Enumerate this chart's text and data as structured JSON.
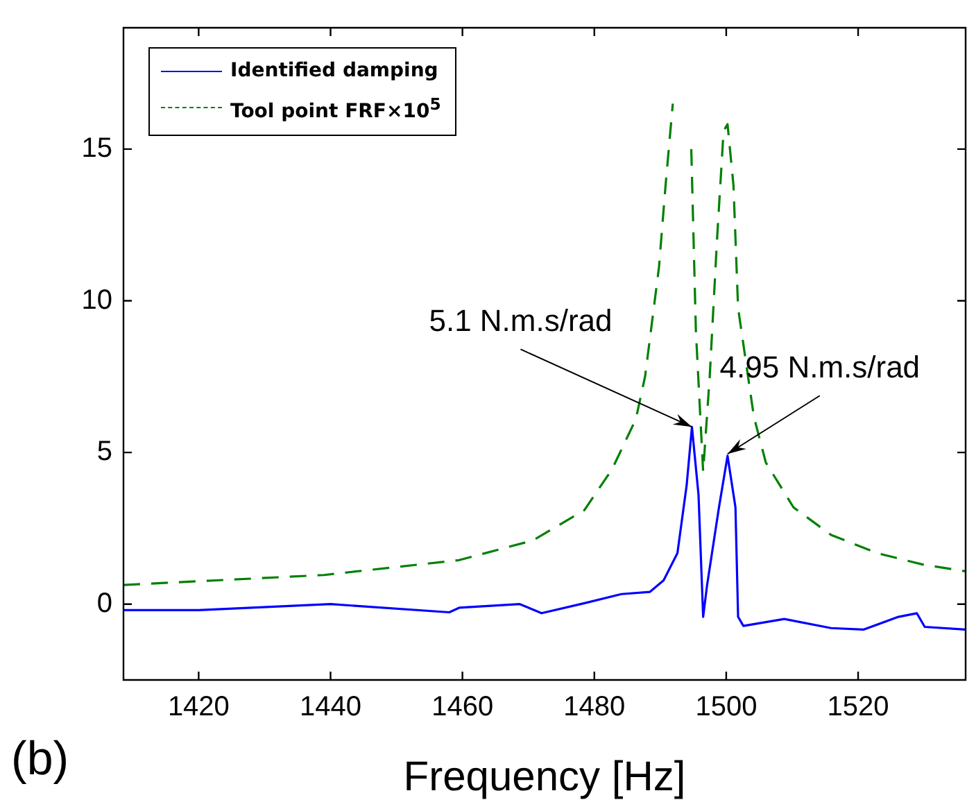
{
  "chart_data": {
    "type": "line",
    "xlabel": "Frequency [Hz]",
    "xlim": [
      1408.6,
      1536.3
    ],
    "ylim": [
      -2.5,
      19.0
    ],
    "xticks": [
      1420,
      1440,
      1460,
      1480,
      1500,
      1520
    ],
    "yticks": [
      0,
      5,
      10,
      15
    ],
    "grid": false,
    "legend": "top left",
    "marker": "none",
    "series": [
      {
        "name": "Identified damping",
        "color": "#0000ff",
        "line_style": "solid",
        "x": [
          1408.6,
          1420,
          1440,
          1458,
          1459.5,
          1468.7,
          1472,
          1478.5,
          1484.1,
          1488.4,
          1490.5,
          1492.6,
          1494,
          1494.8,
          1495.8,
          1496.5,
          1497.1,
          1498.9,
          1500.2,
          1501.4,
          1501.8,
          1502.6,
          1508.8,
          1515.9,
          1520.8,
          1526.1,
          1528.9,
          1530.1,
          1536.3
        ],
        "values": [
          -0.2,
          -0.2,
          0,
          -0.27,
          -0.12,
          0,
          -0.3,
          0.03,
          0.33,
          0.4,
          0.78,
          1.68,
          3.92,
          5.84,
          3.6,
          -0.42,
          0.63,
          3.19,
          4.89,
          3.19,
          -0.42,
          -0.72,
          -0.49,
          -0.79,
          -0.84,
          -0.42,
          -0.3,
          -0.75,
          -0.84
        ]
      },
      {
        "name": "Tool point FRF×10$^{5}$",
        "color": "#008000",
        "line_style": "dashed",
        "x": [
          1408.6,
          1439,
          1459.5,
          1470.7,
          1478.5,
          1482.7,
          1486.3,
          1487.7,
          1489.8,
          1490.8,
          1491.9,
          1492.6,
          1494,
          1494.7,
          1495.4,
          1496.5,
          1497.5,
          1498.6,
          1499.6,
          1500.2,
          1501.1,
          1501.8,
          1504.2,
          1506,
          1510.2,
          1515.9,
          1522.9,
          1529.9,
          1536.3
        ],
        "values": [
          0.63,
          0.96,
          1.45,
          2.1,
          3.1,
          4.45,
          6.1,
          7.51,
          11.1,
          13.8,
          16.5,
          null,
          null,
          15,
          9.0,
          4.37,
          7.51,
          12.0,
          15.6,
          15.82,
          13.8,
          9.76,
          6.17,
          4.67,
          3.19,
          2.28,
          1.68,
          1.3,
          1.08
        ]
      }
    ],
    "annotations": [
      {
        "text": "5.1 N.m.s/rad",
        "x": 1494.8,
        "y": 5.84
      },
      {
        "text": "4.95 N.m.s/rad",
        "x": 1500.2,
        "y": 4.95
      },
      "(b)"
    ]
  }
}
